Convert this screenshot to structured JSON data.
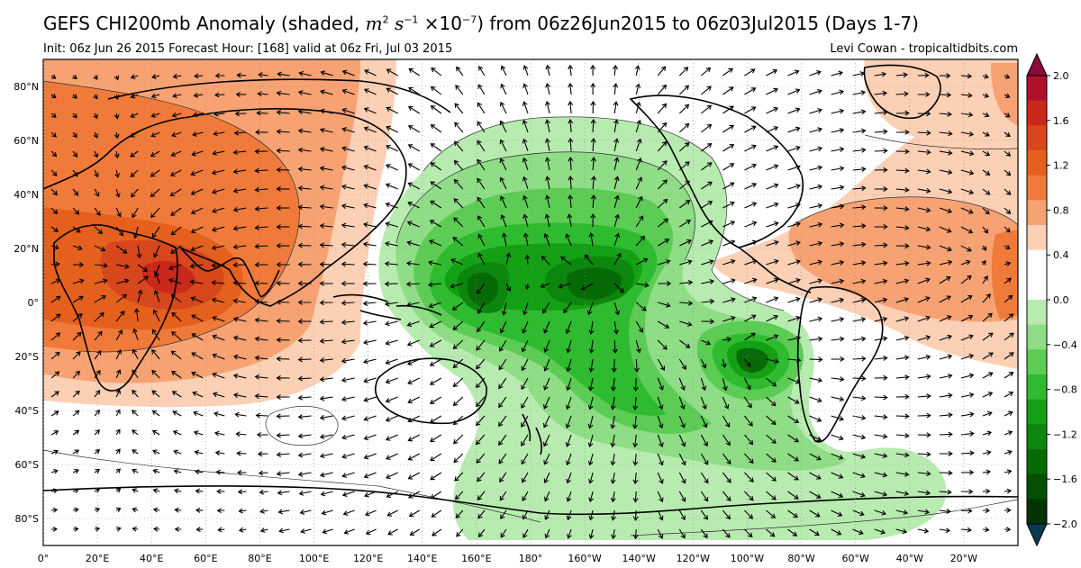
{
  "title": {
    "prefix": "GEFS CHI200mb Anomaly (shaded, ",
    "units_m": "m",
    "units_m_exp": "2",
    "units_s": "s",
    "units_s_exp": "−1",
    "units_scale": "×10",
    "units_scale_exp": "−7",
    "suffix": ") from 06z26Jun2015 to 06z03Jul2015 (Days 1-7)"
  },
  "subtitle_left": "Init: 06z Jun 26 2015 Forecast Hour: [168] valid at 06z Fri, Jul 03 2015",
  "credit": "Levi Cowan - tropicaltidbits.com",
  "lat_labels": [
    "80°N",
    "60°N",
    "40°N",
    "20°N",
    "0°",
    "20°S",
    "40°S",
    "60°S",
    "80°S"
  ],
  "lat_values": [
    80,
    60,
    40,
    20,
    0,
    -20,
    -40,
    -60,
    -80
  ],
  "lon_labels": [
    "0°",
    "20°E",
    "40°E",
    "60°E",
    "80°E",
    "100°E",
    "120°E",
    "140°E",
    "160°E",
    "180°",
    "160°W",
    "140°W",
    "120°W",
    "100°W",
    "80°W",
    "60°W",
    "40°W",
    "20°W"
  ],
  "lon_values": [
    0,
    20,
    40,
    60,
    80,
    100,
    120,
    140,
    160,
    180,
    200,
    220,
    240,
    260,
    280,
    300,
    320,
    340
  ],
  "colorbar": {
    "labels": [
      "2.0",
      "1.6",
      "1.2",
      "0.8",
      "0.4",
      "0.0",
      "−0.4",
      "−0.8",
      "−1.2",
      "−1.6",
      "−2.0"
    ],
    "values": [
      2.0,
      1.6,
      1.2,
      0.8,
      0.4,
      0.0,
      -0.4,
      -0.8,
      -1.2,
      -1.6,
      -2.0
    ],
    "colors": [
      "#b0102a",
      "#c9281a",
      "#d8461c",
      "#e5601c",
      "#f07a3a",
      "#f7a273",
      "#fcd0b4",
      "#ffffff",
      "#ffffff",
      "#b8ebb0",
      "#8fdd86",
      "#5ccc55",
      "#2fbb2f",
      "#14a014",
      "#0c860c",
      "#066a06",
      "#045004",
      "#023402"
    ],
    "over_color": "#8a0a3a",
    "under_color": "#073a55"
  },
  "map": {
    "projection": "equirectangular",
    "lon_range": [
      0,
      360
    ],
    "lat_range": [
      -90,
      90
    ],
    "variable": "CHI200mb Anomaly",
    "vectors": "divergent wind"
  }
}
